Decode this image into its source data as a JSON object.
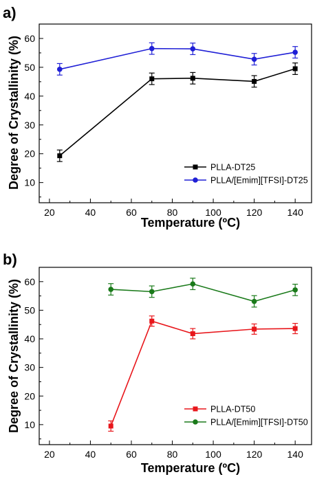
{
  "chart_data": [
    {
      "type": "line",
      "panel_label": "a)",
      "xlabel": "Temperature (ºC)",
      "ylabel": "Degree of Crystallinity (%)",
      "xlim": [
        15,
        148
      ],
      "ylim": [
        3,
        65
      ],
      "xticks": [
        20,
        40,
        60,
        80,
        100,
        120,
        140
      ],
      "yticks": [
        10,
        20,
        30,
        40,
        50,
        60
      ],
      "xtick_labels": [
        "20",
        "40",
        "60",
        "80",
        "100",
        "120",
        "140"
      ],
      "ytick_labels": [
        "10",
        "20",
        "30",
        "40",
        "50",
        "60"
      ],
      "legend_position": "bottom-right",
      "grid": false,
      "series": [
        {
          "name": "PLLA-DT25",
          "color": "#000000",
          "marker": "square",
          "x": [
            25,
            70,
            90,
            120,
            140
          ],
          "y": [
            19.3,
            46.0,
            46.2,
            45.1,
            49.5
          ],
          "yerr": [
            2.0,
            2.0,
            2.0,
            2.0,
            2.0
          ]
        },
        {
          "name": "PLLA/[Emim][TFSI]-DT25",
          "color": "#1f1fd6",
          "marker": "circle",
          "x": [
            25,
            70,
            90,
            120,
            140
          ],
          "y": [
            49.3,
            56.5,
            56.4,
            52.8,
            55.2
          ],
          "yerr": [
            2.0,
            2.0,
            2.0,
            2.0,
            2.0
          ]
        }
      ]
    },
    {
      "type": "line",
      "panel_label": "b)",
      "xlabel": "Temperature (ºC)",
      "ylabel": "Degree of Crystallinity (%)",
      "xlim": [
        15,
        148
      ],
      "ylim": [
        3,
        65
      ],
      "xticks": [
        20,
        40,
        60,
        80,
        100,
        120,
        140
      ],
      "yticks": [
        10,
        20,
        30,
        40,
        50,
        60
      ],
      "xtick_labels": [
        "20",
        "40",
        "60",
        "80",
        "100",
        "120",
        "140"
      ],
      "ytick_labels": [
        "10",
        "20",
        "30",
        "40",
        "50",
        "60"
      ],
      "legend_position": "bottom-right",
      "grid": false,
      "series": [
        {
          "name": "PLLA-DT50",
          "color": "#e8161b",
          "marker": "square",
          "x": [
            50,
            70,
            90,
            120,
            140
          ],
          "y": [
            9.5,
            46.2,
            41.8,
            43.4,
            43.6
          ],
          "yerr": [
            1.8,
            1.8,
            1.8,
            1.8,
            1.8
          ]
        },
        {
          "name": "PLLA/[Emim][TFSI]-DT50",
          "color": "#1a7a1a",
          "marker": "circle",
          "x": [
            50,
            70,
            90,
            120,
            140
          ],
          "y": [
            57.3,
            56.5,
            59.2,
            53.1,
            57.1
          ],
          "yerr": [
            2.0,
            2.0,
            2.0,
            2.0,
            2.0
          ]
        }
      ]
    }
  ]
}
